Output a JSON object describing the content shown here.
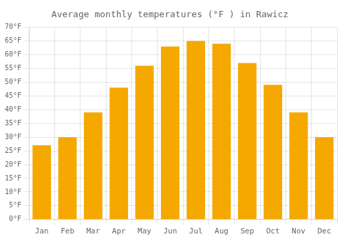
{
  "chart_data": {
    "type": "bar",
    "title": "Average monthly temperatures (°F ) in Rawicz",
    "categories": [
      "Jan",
      "Feb",
      "Mar",
      "Apr",
      "May",
      "Jun",
      "Jul",
      "Aug",
      "Sep",
      "Oct",
      "Nov",
      "Dec"
    ],
    "values": [
      27,
      30,
      39,
      48,
      56,
      63,
      65,
      64,
      57,
      49,
      39,
      30
    ],
    "color": "#F5A800",
    "ylim": [
      0,
      70
    ],
    "yticks": [
      {
        "value": 0,
        "label": "0°F"
      },
      {
        "value": 5,
        "label": "5°F"
      },
      {
        "value": 10,
        "label": "10°F"
      },
      {
        "value": 15,
        "label": "15°F"
      },
      {
        "value": 20,
        "label": "20°F"
      },
      {
        "value": 25,
        "label": "25°F"
      },
      {
        "value": 30,
        "label": "30°F"
      },
      {
        "value": 35,
        "label": "35°F"
      },
      {
        "value": 40,
        "label": "40°F"
      },
      {
        "value": 45,
        "label": "45°F"
      },
      {
        "value": 50,
        "label": "50°F"
      },
      {
        "value": 55,
        "label": "55°F"
      },
      {
        "value": 60,
        "label": "60°F"
      },
      {
        "value": 65,
        "label": "65°F"
      },
      {
        "value": 70,
        "label": "70°F"
      }
    ],
    "grid": true
  }
}
